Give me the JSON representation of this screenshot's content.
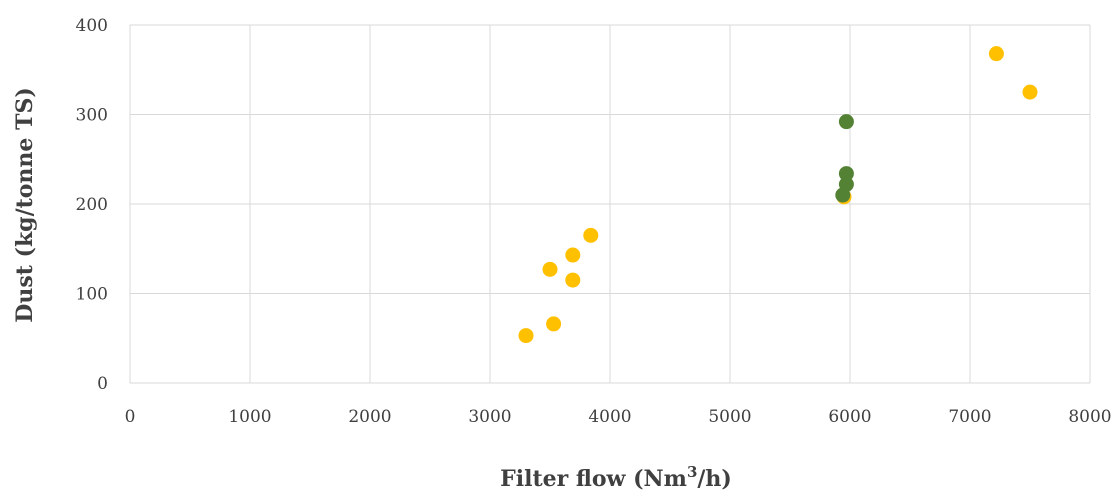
{
  "chart_data": {
    "type": "scatter",
    "title": "",
    "xlabel": "Filter flow (Nm3/h)",
    "xlabel_parts": {
      "pre": "Filter flow (Nm",
      "sup": "3",
      "post": "/h)"
    },
    "ylabel": "Dust (kg/tonne TS)",
    "xlim": [
      0,
      8000
    ],
    "ylim": [
      0,
      400
    ],
    "x_ticks": [
      0,
      1000,
      2000,
      3000,
      4000,
      5000,
      6000,
      7000,
      8000
    ],
    "y_ticks": [
      0,
      100,
      200,
      300,
      400
    ],
    "grid": true,
    "legend": "none",
    "series": [
      {
        "color": "#FFC000",
        "points": [
          {
            "x": 3300,
            "y": 53
          },
          {
            "x": 3530,
            "y": 66
          },
          {
            "x": 3500,
            "y": 127
          },
          {
            "x": 3690,
            "y": 115
          },
          {
            "x": 3690,
            "y": 143
          },
          {
            "x": 3840,
            "y": 165
          },
          {
            "x": 5950,
            "y": 208
          },
          {
            "x": 7220,
            "y": 368
          },
          {
            "x": 7500,
            "y": 325
          }
        ]
      },
      {
        "color": "#548235",
        "points": [
          {
            "x": 5940,
            "y": 210
          },
          {
            "x": 5970,
            "y": 222
          },
          {
            "x": 5970,
            "y": 234
          },
          {
            "x": 5970,
            "y": 292
          }
        ]
      }
    ]
  }
}
